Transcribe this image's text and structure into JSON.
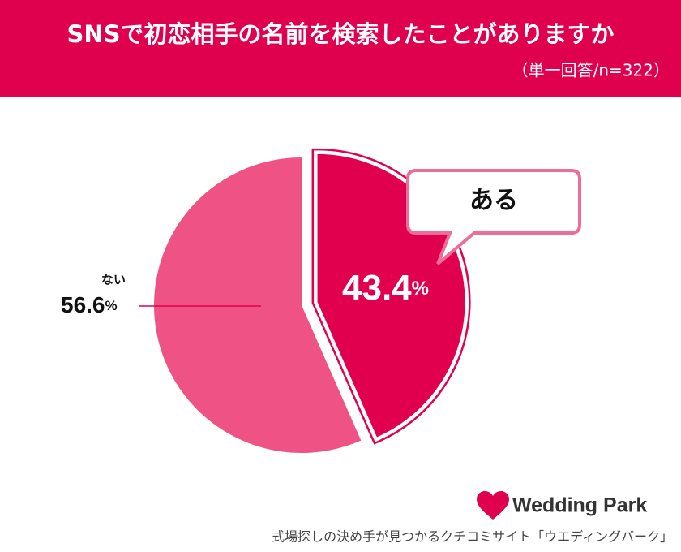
{
  "chart_data": {
    "type": "pie",
    "title": "SNSで初恋相手の名前を検索したことがありますか",
    "subtitle": "（単一回答/n=322）",
    "categories": [
      "ある",
      "ない"
    ],
    "values": [
      43.4,
      56.6
    ],
    "value_labels": [
      "43.4%",
      "56.6%"
    ],
    "colors": [
      "#e0004e",
      "#ef5285"
    ]
  },
  "footer": {
    "brand": "Wedding Park",
    "tagline": "式場探しの決め手が見つかるクチコミサイト「ウエディングパーク」"
  }
}
